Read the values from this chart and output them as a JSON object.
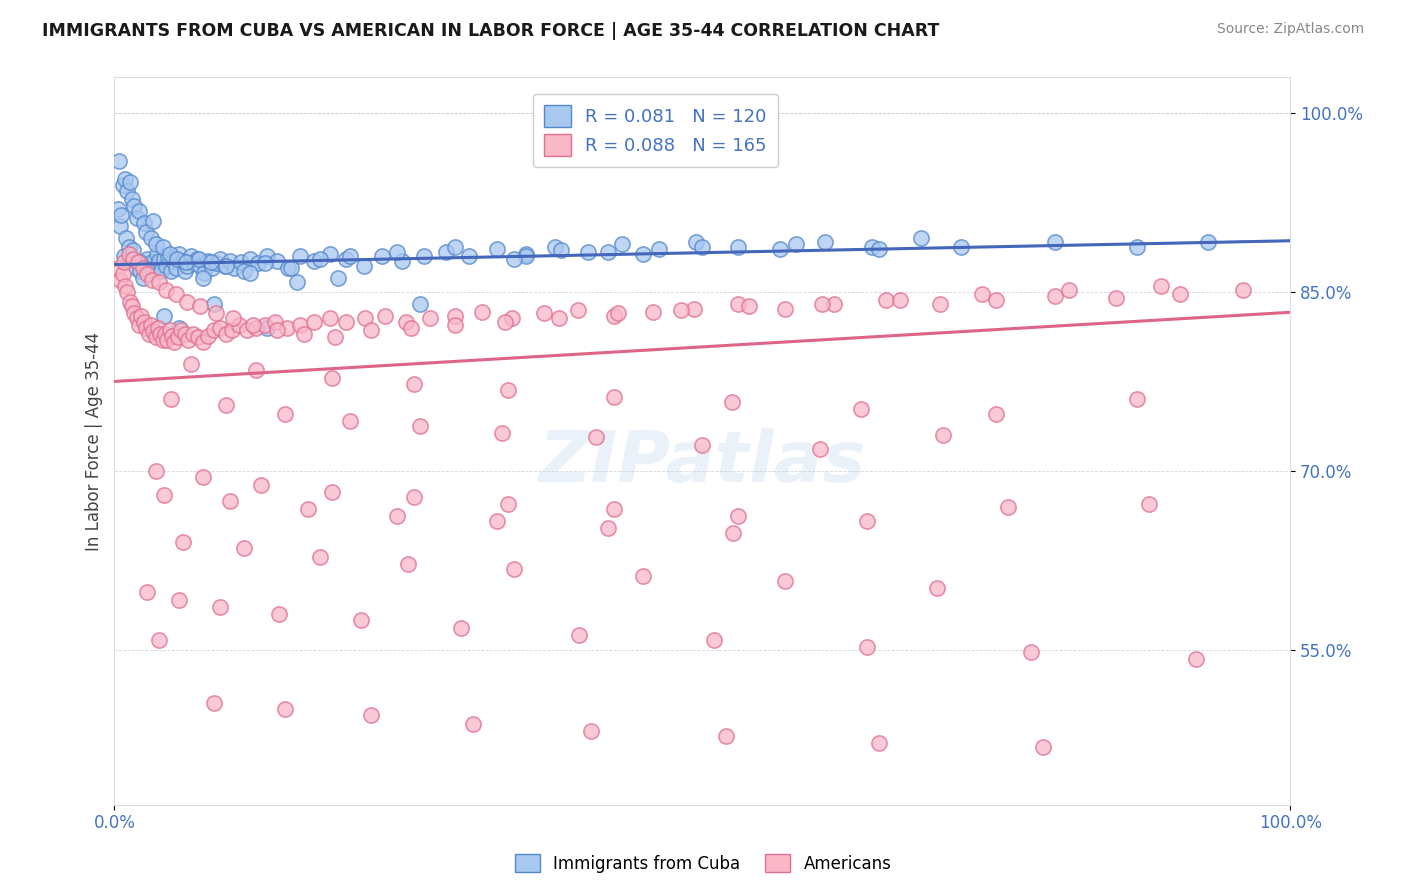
{
  "title": "IMMIGRANTS FROM CUBA VS AMERICAN IN LABOR FORCE | AGE 35-44 CORRELATION CHART",
  "source_text": "Source: ZipAtlas.com",
  "ylabel": "In Labor Force | Age 35-44",
  "xlim": [
    0.0,
    1.0
  ],
  "ylim": [
    0.42,
    1.03
  ],
  "ytick_vals": [
    0.55,
    0.7,
    0.85,
    1.0
  ],
  "ytick_labels": [
    "55.0%",
    "70.0%",
    "85.0%",
    "100.0%"
  ],
  "xtick_labels": [
    "0.0%",
    "100.0%"
  ],
  "legend_r1": "R = 0.081",
  "legend_n1": "N = 120",
  "legend_r2": "R = 0.088",
  "legend_n2": "N = 165",
  "legend_label1": "Immigrants from Cuba",
  "legend_label2": "Americans",
  "color_blue_fill": "#A8C8F0",
  "color_blue_edge": "#5588CC",
  "color_pink_fill": "#F8B8C8",
  "color_pink_edge": "#E07090",
  "color_blue_line": "#4466BB",
  "color_pink_line": "#DD6688",
  "color_text_blue": "#4472C4",
  "background_color": "#FFFFFF",
  "watermark": "ZIPatlas",
  "blue_intercept": 0.873,
  "blue_slope": 0.02,
  "pink_intercept": 0.775,
  "pink_slope": 0.058,
  "scatter_blue_x": [
    0.003,
    0.005,
    0.006,
    0.008,
    0.01,
    0.012,
    0.014,
    0.016,
    0.018,
    0.02,
    0.022,
    0.024,
    0.026,
    0.028,
    0.03,
    0.032,
    0.034,
    0.036,
    0.038,
    0.04,
    0.042,
    0.044,
    0.046,
    0.048,
    0.05,
    0.052,
    0.055,
    0.058,
    0.06,
    0.062,
    0.065,
    0.068,
    0.07,
    0.073,
    0.076,
    0.08,
    0.083,
    0.086,
    0.09,
    0.094,
    0.098,
    0.102,
    0.108,
    0.115,
    0.122,
    0.13,
    0.138,
    0.148,
    0.158,
    0.17,
    0.183,
    0.197,
    0.212,
    0.228,
    0.245,
    0.263,
    0.282,
    0.302,
    0.325,
    0.35,
    0.375,
    0.403,
    0.432,
    0.463,
    0.495,
    0.53,
    0.566,
    0.604,
    0.644,
    0.686,
    0.004,
    0.007,
    0.009,
    0.011,
    0.013,
    0.015,
    0.017,
    0.019,
    0.021,
    0.025,
    0.027,
    0.031,
    0.035,
    0.041,
    0.047,
    0.053,
    0.061,
    0.072,
    0.082,
    0.095,
    0.11,
    0.128,
    0.15,
    0.175,
    0.2,
    0.24,
    0.29,
    0.35,
    0.42,
    0.5,
    0.58,
    0.65,
    0.72,
    0.8,
    0.87,
    0.93,
    0.042,
    0.085,
    0.13,
    0.38,
    0.45,
    0.34,
    0.26,
    0.19,
    0.155,
    0.115,
    0.075,
    0.055,
    0.033,
    0.022
  ],
  "scatter_blue_y": [
    0.92,
    0.905,
    0.915,
    0.88,
    0.895,
    0.888,
    0.878,
    0.885,
    0.87,
    0.875,
    0.868,
    0.862,
    0.872,
    0.878,
    0.865,
    0.875,
    0.87,
    0.882,
    0.876,
    0.868,
    0.878,
    0.872,
    0.88,
    0.868,
    0.876,
    0.87,
    0.882,
    0.876,
    0.868,
    0.872,
    0.88,
    0.874,
    0.878,
    0.872,
    0.866,
    0.876,
    0.87,
    0.874,
    0.878,
    0.872,
    0.876,
    0.87,
    0.875,
    0.878,
    0.874,
    0.88,
    0.876,
    0.87,
    0.88,
    0.876,
    0.882,
    0.878,
    0.872,
    0.88,
    0.876,
    0.88,
    0.884,
    0.88,
    0.886,
    0.882,
    0.888,
    0.884,
    0.89,
    0.886,
    0.892,
    0.888,
    0.886,
    0.892,
    0.888,
    0.895,
    0.96,
    0.94,
    0.945,
    0.935,
    0.942,
    0.928,
    0.922,
    0.912,
    0.918,
    0.908,
    0.9,
    0.895,
    0.89,
    0.888,
    0.882,
    0.878,
    0.875,
    0.878,
    0.875,
    0.872,
    0.868,
    0.874,
    0.87,
    0.878,
    0.88,
    0.884,
    0.888,
    0.88,
    0.884,
    0.888,
    0.89,
    0.886,
    0.888,
    0.892,
    0.888,
    0.892,
    0.83,
    0.84,
    0.82,
    0.885,
    0.882,
    0.878,
    0.84,
    0.862,
    0.858,
    0.866,
    0.862,
    0.82,
    0.91,
    0.875
  ],
  "scatter_pink_x": [
    0.003,
    0.005,
    0.007,
    0.009,
    0.011,
    0.013,
    0.015,
    0.017,
    0.019,
    0.021,
    0.023,
    0.025,
    0.027,
    0.029,
    0.031,
    0.033,
    0.035,
    0.037,
    0.039,
    0.041,
    0.043,
    0.045,
    0.047,
    0.049,
    0.051,
    0.054,
    0.057,
    0.06,
    0.063,
    0.067,
    0.071,
    0.075,
    0.08,
    0.085,
    0.09,
    0.095,
    0.1,
    0.106,
    0.113,
    0.12,
    0.128,
    0.137,
    0.147,
    0.158,
    0.17,
    0.183,
    0.197,
    0.213,
    0.23,
    0.248,
    0.268,
    0.29,
    0.313,
    0.338,
    0.365,
    0.394,
    0.425,
    0.458,
    0.493,
    0.53,
    0.57,
    0.612,
    0.656,
    0.702,
    0.75,
    0.8,
    0.852,
    0.906,
    0.96,
    0.008,
    0.012,
    0.016,
    0.02,
    0.024,
    0.028,
    0.032,
    0.038,
    0.044,
    0.052,
    0.062,
    0.073,
    0.086,
    0.101,
    0.118,
    0.138,
    0.161,
    0.188,
    0.218,
    0.252,
    0.29,
    0.332,
    0.378,
    0.428,
    0.482,
    0.54,
    0.602,
    0.668,
    0.738,
    0.812,
    0.89,
    0.048,
    0.095,
    0.145,
    0.2,
    0.26,
    0.33,
    0.41,
    0.5,
    0.6,
    0.705,
    0.065,
    0.12,
    0.185,
    0.255,
    0.335,
    0.425,
    0.525,
    0.635,
    0.75,
    0.87,
    0.035,
    0.075,
    0.125,
    0.185,
    0.255,
    0.335,
    0.425,
    0.53,
    0.64,
    0.76,
    0.88,
    0.042,
    0.098,
    0.165,
    0.24,
    0.325,
    0.42,
    0.526,
    0.058,
    0.11,
    0.175,
    0.25,
    0.34,
    0.45,
    0.57,
    0.7,
    0.028,
    0.055,
    0.09,
    0.14,
    0.21,
    0.295,
    0.395,
    0.51,
    0.64,
    0.78,
    0.92,
    0.038,
    0.085,
    0.145,
    0.218,
    0.305,
    0.405,
    0.52,
    0.65,
    0.79
  ],
  "scatter_pink_y": [
    0.87,
    0.86,
    0.865,
    0.855,
    0.85,
    0.842,
    0.838,
    0.832,
    0.828,
    0.822,
    0.83,
    0.825,
    0.82,
    0.815,
    0.822,
    0.817,
    0.812,
    0.82,
    0.815,
    0.81,
    0.815,
    0.81,
    0.818,
    0.813,
    0.808,
    0.812,
    0.818,
    0.815,
    0.81,
    0.815,
    0.812,
    0.808,
    0.813,
    0.818,
    0.82,
    0.815,
    0.818,
    0.822,
    0.818,
    0.82,
    0.822,
    0.825,
    0.82,
    0.822,
    0.825,
    0.828,
    0.825,
    0.828,
    0.83,
    0.825,
    0.828,
    0.83,
    0.833,
    0.828,
    0.832,
    0.835,
    0.83,
    0.833,
    0.836,
    0.84,
    0.836,
    0.84,
    0.843,
    0.84,
    0.843,
    0.847,
    0.845,
    0.848,
    0.852,
    0.875,
    0.882,
    0.878,
    0.875,
    0.87,
    0.865,
    0.86,
    0.858,
    0.852,
    0.848,
    0.842,
    0.838,
    0.832,
    0.828,
    0.822,
    0.818,
    0.815,
    0.812,
    0.818,
    0.82,
    0.822,
    0.825,
    0.828,
    0.832,
    0.835,
    0.838,
    0.84,
    0.843,
    0.848,
    0.852,
    0.855,
    0.76,
    0.755,
    0.748,
    0.742,
    0.738,
    0.732,
    0.728,
    0.722,
    0.718,
    0.73,
    0.79,
    0.785,
    0.778,
    0.773,
    0.768,
    0.762,
    0.758,
    0.752,
    0.748,
    0.76,
    0.7,
    0.695,
    0.688,
    0.682,
    0.678,
    0.672,
    0.668,
    0.662,
    0.658,
    0.67,
    0.672,
    0.68,
    0.675,
    0.668,
    0.662,
    0.658,
    0.652,
    0.648,
    0.64,
    0.635,
    0.628,
    0.622,
    0.618,
    0.612,
    0.608,
    0.602,
    0.598,
    0.592,
    0.586,
    0.58,
    0.575,
    0.568,
    0.562,
    0.558,
    0.552,
    0.548,
    0.542,
    0.558,
    0.505,
    0.5,
    0.495,
    0.488,
    0.482,
    0.478,
    0.472,
    0.468
  ]
}
